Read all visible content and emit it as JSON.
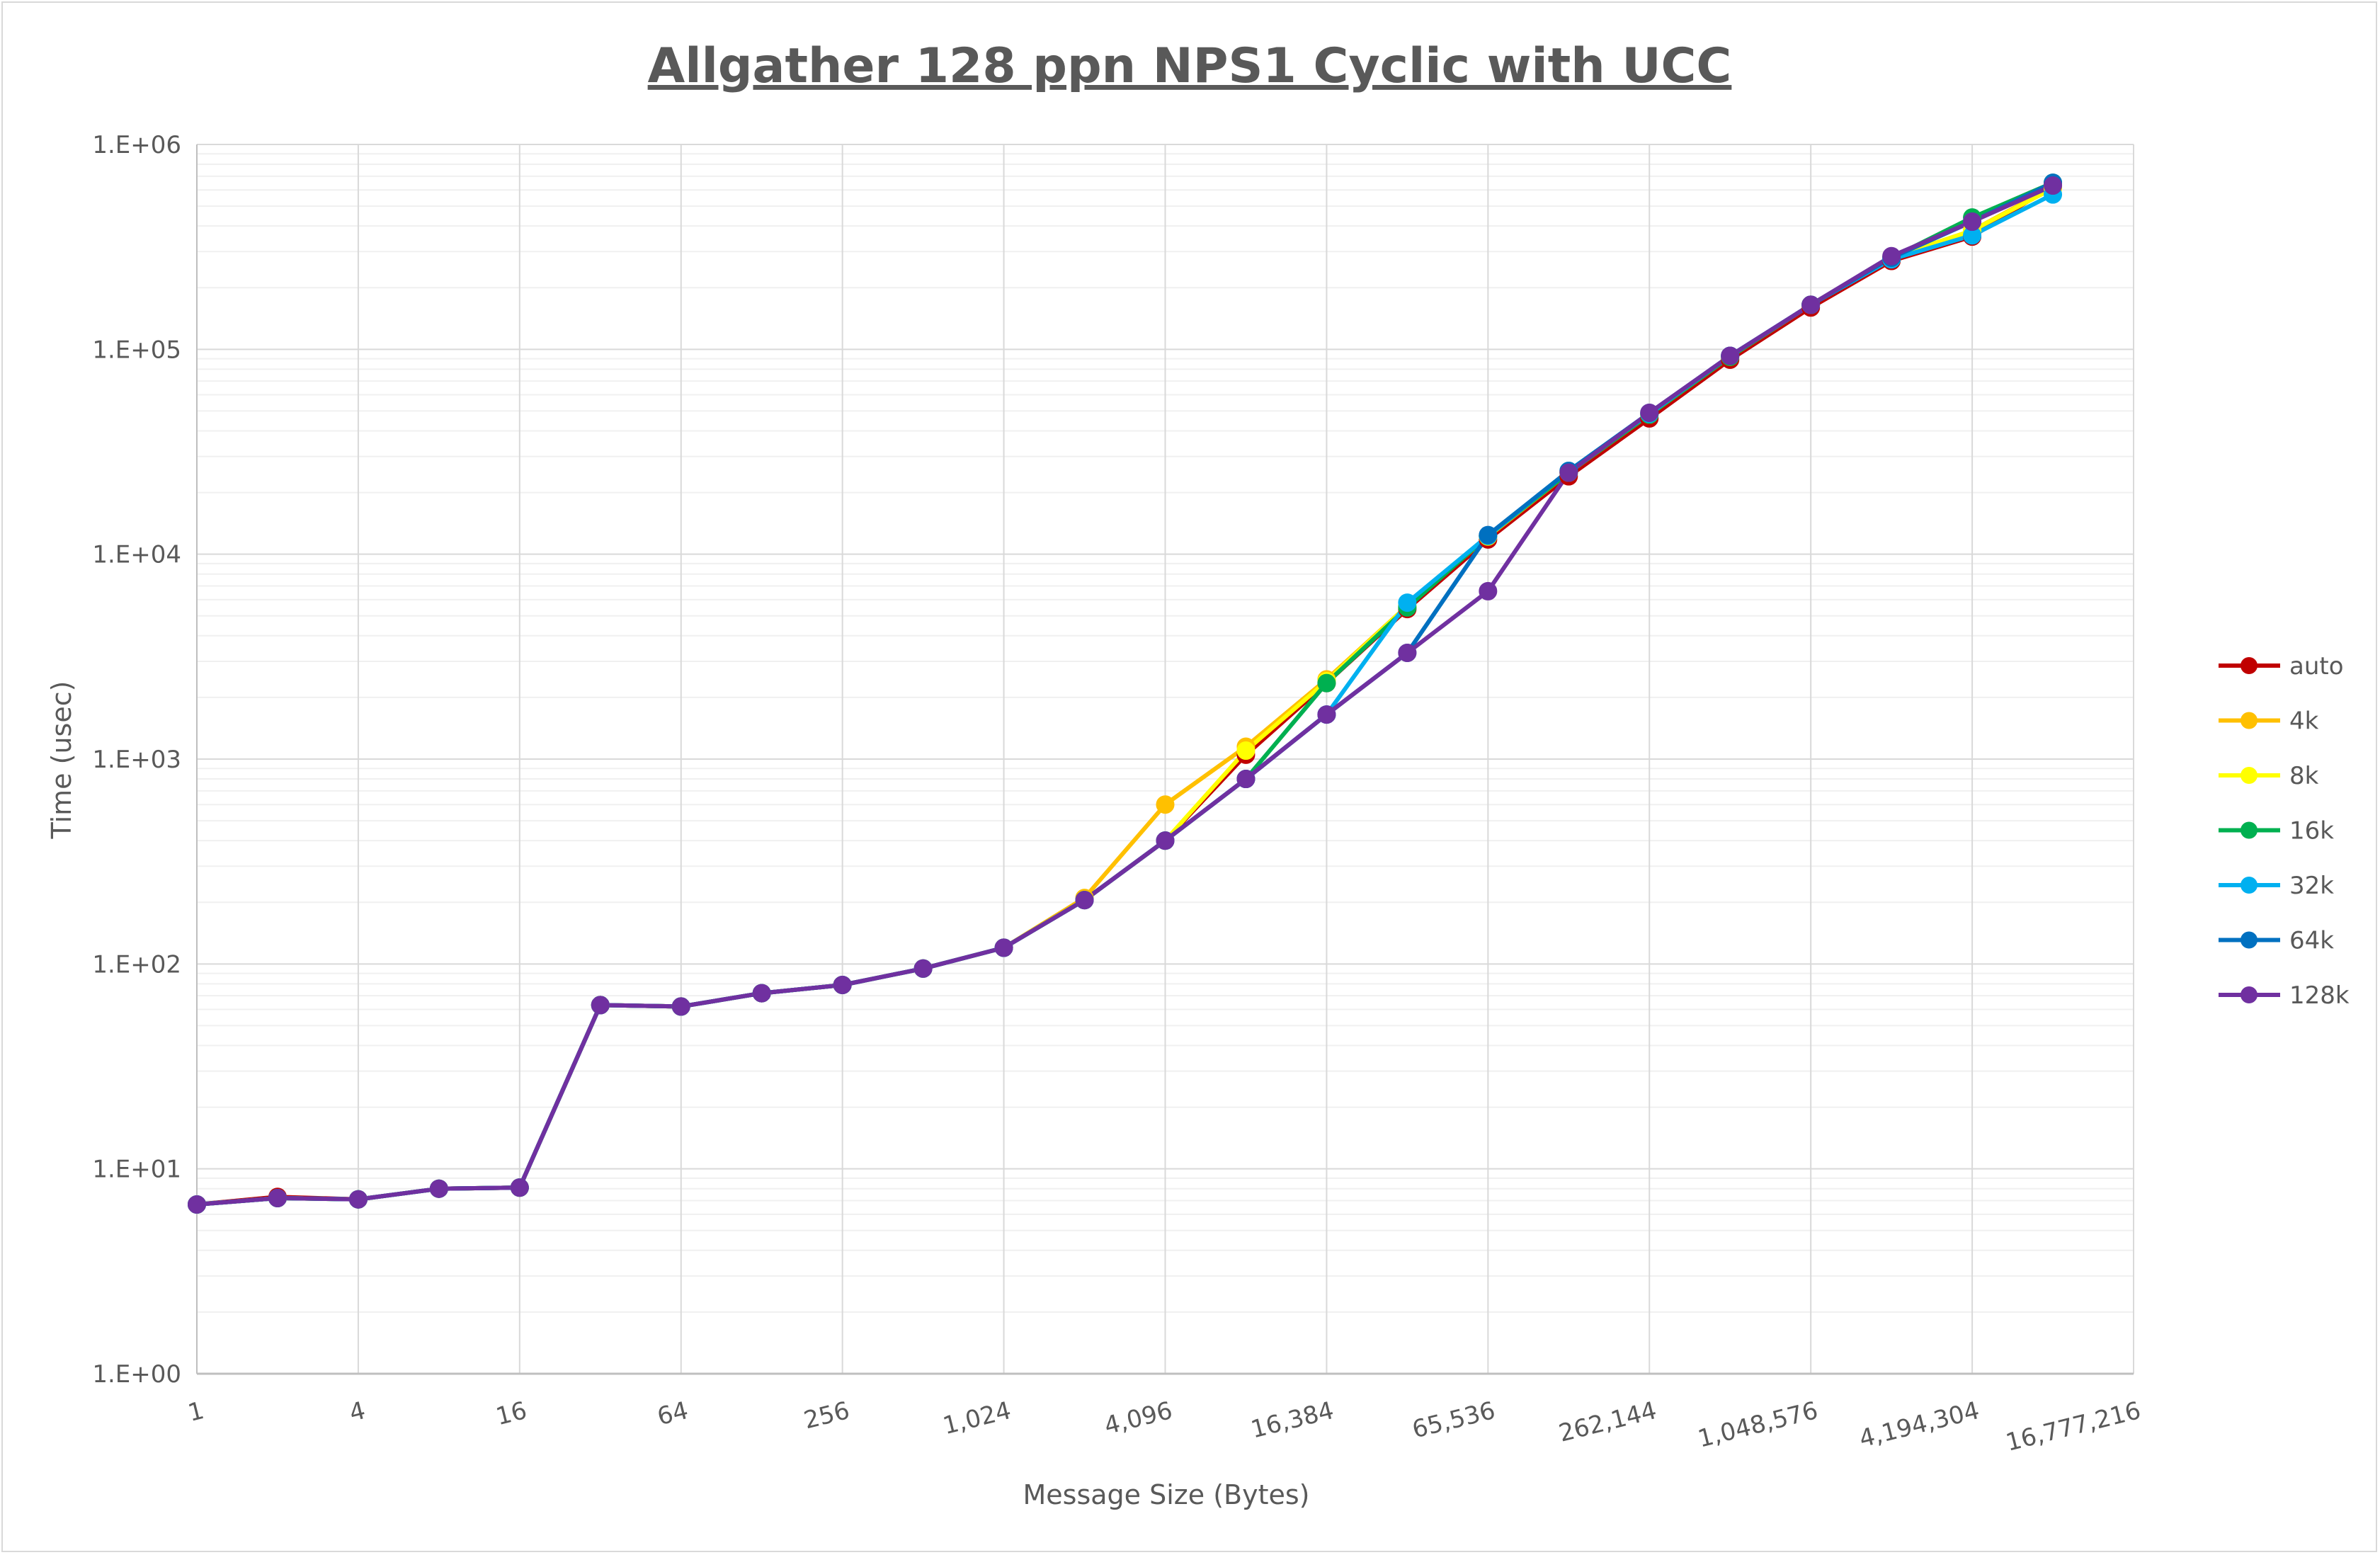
{
  "chart_data": {
    "type": "line",
    "title": "Allgather 128 ppn NPS1 Cyclic with UCC",
    "xlabel": "Message Size (Bytes)",
    "ylabel": "Time (usec)",
    "x_scale": "log2",
    "y_scale": "log10",
    "ylim": [
      1,
      1000000
    ],
    "grid": true,
    "legend_position": "right",
    "x_tick_labels": [
      "1",
      "4",
      "16",
      "64",
      "256",
      "1,024",
      "4,096",
      "16,384",
      "65,536",
      "262,144",
      "1,048,576",
      "4,194,304",
      "16,777,216"
    ],
    "y_tick_labels": [
      "1.E+00",
      "1.E+01",
      "1.E+02",
      "1.E+03",
      "1.E+04",
      "1.E+05",
      "1.E+06"
    ],
    "x": [
      1,
      2,
      4,
      8,
      16,
      32,
      64,
      128,
      256,
      512,
      1024,
      2048,
      4096,
      8192,
      16384,
      32768,
      65536,
      131072,
      262144,
      524288,
      1048576,
      2097152,
      4194304,
      8388608
    ],
    "series": [
      {
        "name": "auto",
        "color": "#C00000",
        "values": [
          6.7,
          7.3,
          7.1,
          8.0,
          8.1,
          63,
          62,
          72,
          79,
          95,
          120,
          205,
          400,
          1050,
          2350,
          5400,
          11800,
          24000,
          46000,
          89000,
          160000,
          270000,
          355000,
          630000
        ]
      },
      {
        "name": "4k",
        "color": "#FFC000",
        "values": [
          6.7,
          7.2,
          7.1,
          8.0,
          8.1,
          63,
          62,
          72,
          79,
          95,
          120,
          210,
          600,
          1150,
          2450,
          5600,
          12200,
          25000,
          48000,
          92000,
          165000,
          280000,
          380000,
          620000
        ]
      },
      {
        "name": "8k",
        "color": "#FFFF00",
        "values": [
          6.7,
          7.2,
          7.1,
          8.0,
          8.1,
          63,
          62,
          72,
          79,
          95,
          120,
          205,
          400,
          1100,
          2400,
          5600,
          12200,
          25000,
          48000,
          92000,
          165000,
          280000,
          380000,
          610000
        ]
      },
      {
        "name": "16k",
        "color": "#00B050",
        "values": [
          6.7,
          7.2,
          7.1,
          8.0,
          8.1,
          63,
          62,
          72,
          79,
          95,
          120,
          205,
          400,
          800,
          2350,
          5500,
          12300,
          25000,
          48000,
          92000,
          165000,
          280000,
          440000,
          650000
        ]
      },
      {
        "name": "32k",
        "color": "#00B0F0",
        "values": [
          6.7,
          7.2,
          7.1,
          8.0,
          8.1,
          63,
          62,
          72,
          79,
          95,
          120,
          205,
          400,
          800,
          1650,
          5800,
          12300,
          25500,
          48500,
          93000,
          165000,
          275000,
          360000,
          570000
        ]
      },
      {
        "name": "64k",
        "color": "#0070C0",
        "values": [
          6.7,
          7.2,
          7.1,
          8.0,
          8.1,
          63,
          62,
          72,
          79,
          95,
          120,
          205,
          400,
          800,
          1650,
          3300,
          12400,
          25500,
          49000,
          93000,
          165000,
          280000,
          420000,
          650000
        ]
      },
      {
        "name": "128k",
        "color": "#7030A0",
        "values": [
          6.7,
          7.2,
          7.1,
          8.0,
          8.1,
          63,
          62,
          72,
          79,
          95,
          120,
          205,
          400,
          800,
          1650,
          3300,
          6600,
          25000,
          49000,
          93000,
          165000,
          285000,
          420000,
          630000
        ]
      }
    ]
  }
}
